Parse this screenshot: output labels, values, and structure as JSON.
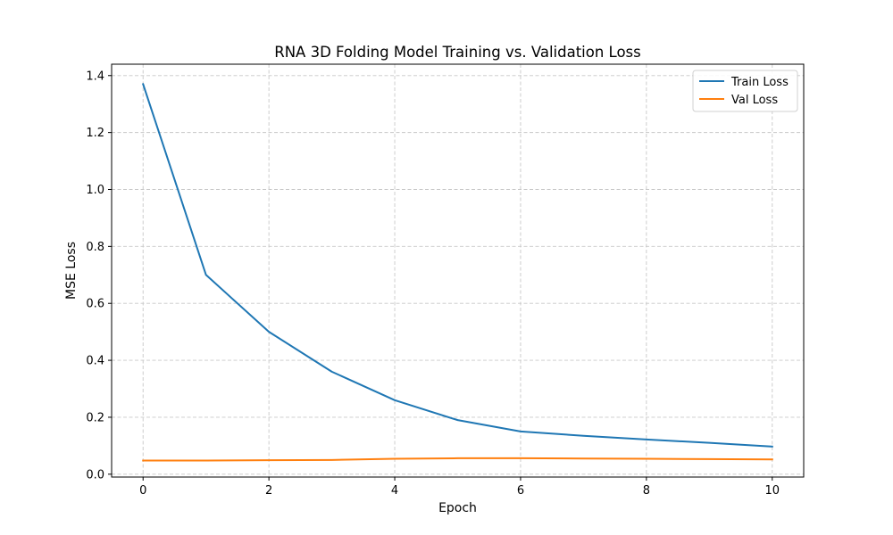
{
  "chart_data": {
    "type": "line",
    "title": "RNA 3D Folding Model Training vs. Validation Loss",
    "xlabel": "Epoch",
    "ylabel": "MSE Loss",
    "xlim": [
      -0.5,
      10.5
    ],
    "ylim": [
      -0.01,
      1.44
    ],
    "xticks": [
      0,
      2,
      4,
      6,
      8,
      10
    ],
    "xtick_labels": [
      "0",
      "2",
      "4",
      "6",
      "8",
      "10"
    ],
    "yticks": [
      0.0,
      0.2,
      0.4,
      0.6,
      0.8,
      1.0,
      1.2,
      1.4
    ],
    "ytick_labels": [
      "0.0",
      "0.2",
      "0.4",
      "0.6",
      "0.8",
      "1.0",
      "1.2",
      "1.4"
    ],
    "grid": true,
    "legend_position": "top-right",
    "x": [
      0,
      1,
      2,
      3,
      4,
      5,
      6,
      7,
      8,
      9,
      10
    ],
    "series": [
      {
        "name": "Train Loss",
        "color": "#1f77b4",
        "values": [
          1.37,
          0.7,
          0.5,
          0.36,
          0.26,
          0.19,
          0.15,
          0.135,
          0.122,
          0.11,
          0.097
        ]
      },
      {
        "name": "Val Loss",
        "color": "#ff7f0e",
        "values": [
          0.048,
          0.048,
          0.049,
          0.05,
          0.054,
          0.056,
          0.056,
          0.055,
          0.054,
          0.053,
          0.052
        ]
      }
    ]
  }
}
